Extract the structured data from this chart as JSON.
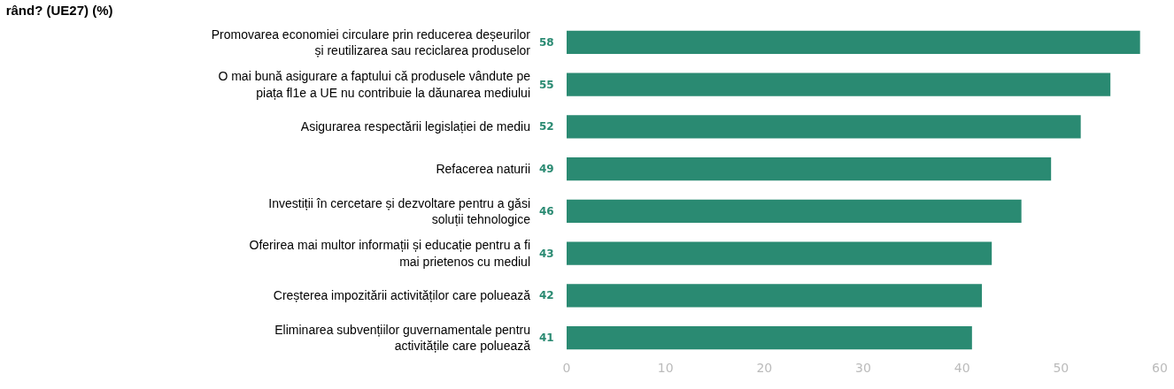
{
  "chart_data": {
    "type": "bar",
    "orientation": "horizontal",
    "title": "rând? (UE27) (%)",
    "categories": [
      "Promovarea economiei circulare prin reducerea deșeurilor și reutilizarea sau reciclarea produselor",
      "O mai bună asigurare a faptului că produsele vândute pe piața fl1e a UE nu contribuie la dăunarea mediului",
      "Asigurarea respectării legislației de mediu",
      "Refacerea naturii",
      "Investiții în cercetare și dezvoltare pentru a găsi soluții tehnologice",
      "Oferirea mai multor informații și educație pentru a fi mai prietenos cu mediul",
      "Creșterea impozitării activităților care poluează",
      "Eliminarea subvențiilor guvernamentale pentru activitățile care poluează"
    ],
    "values": [
      58,
      55,
      52,
      49,
      46,
      43,
      42,
      41
    ],
    "color": "#2a8a72",
    "data_labels": true,
    "xlim": [
      0,
      60
    ],
    "xticks": [
      0,
      10,
      20,
      30,
      40,
      50,
      60
    ]
  }
}
